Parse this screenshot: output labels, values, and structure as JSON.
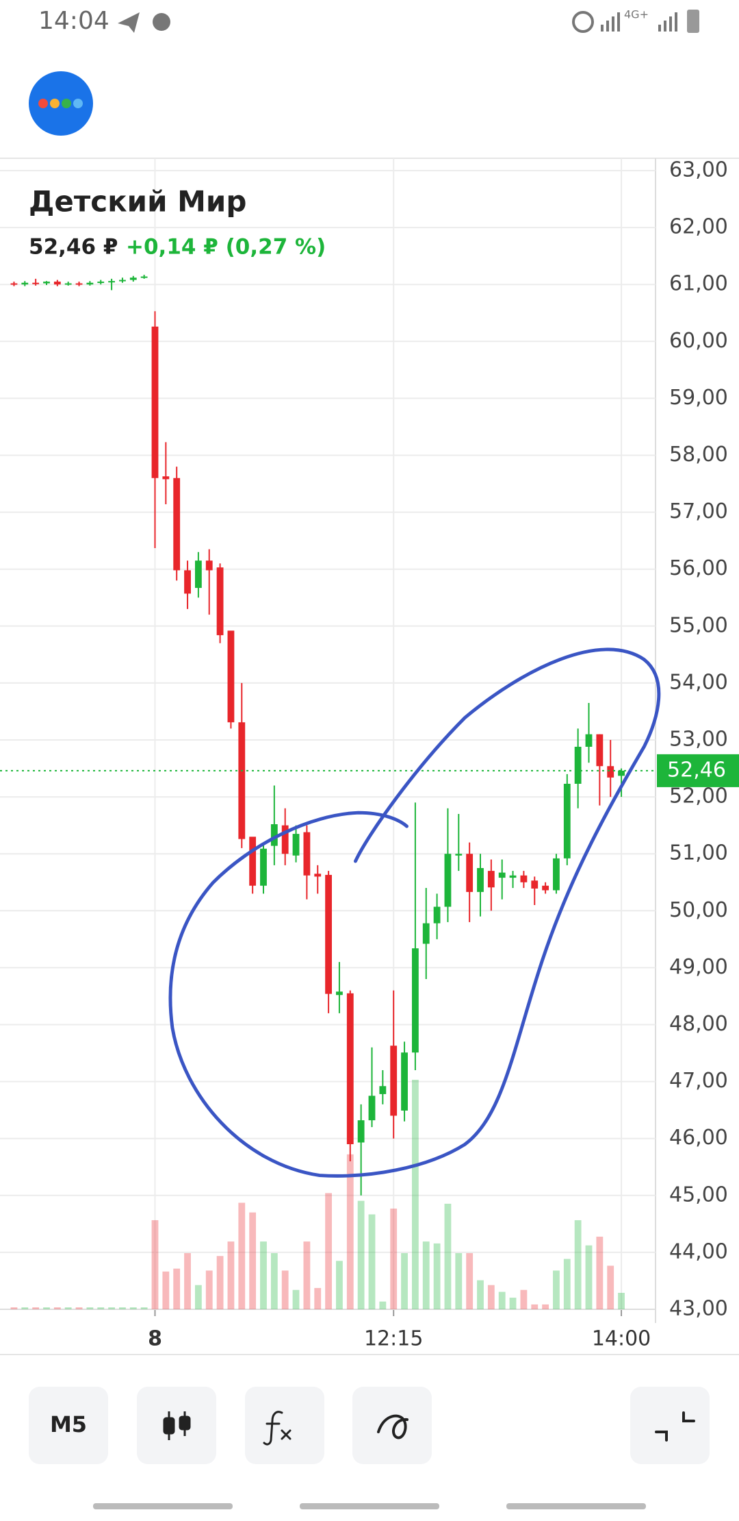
{
  "status_bar": {
    "time": "14:04",
    "network": "4G+"
  },
  "instrument": {
    "name": "Детский Мир",
    "price": "52,46 ₽",
    "change": "+0,14 ₽ (0,27 %)"
  },
  "chart_data": {
    "type": "candlestick",
    "categories": [
      null,
      null,
      null,
      null,
      null,
      null,
      null,
      null,
      null,
      null,
      null,
      null,
      null,
      "8",
      null,
      null,
      null,
      null,
      null,
      null,
      null,
      null,
      null,
      null,
      null,
      null,
      null,
      null,
      null,
      null,
      null,
      null,
      null,
      null,
      null,
      "12:15",
      null,
      null,
      null,
      null,
      null,
      null,
      null,
      null,
      null,
      null,
      null,
      null,
      null,
      null,
      null,
      null,
      null,
      null,
      null,
      null,
      "14:00"
    ],
    "open": [
      61.02,
      61.0,
      61.03,
      61.02,
      61.05,
      61.0,
      61.02,
      61.0,
      61.03,
      61.05,
      61.06,
      61.08,
      61.12,
      60.26,
      57.63,
      57.6,
      55.98,
      55.67,
      56.15,
      56.03,
      54.92,
      53.31,
      51.3,
      50.44,
      51.14,
      51.5,
      50.97,
      51.38,
      50.65,
      50.63,
      48.52,
      48.55,
      45.93,
      46.32,
      46.78,
      47.63,
      46.49,
      47.51,
      49.42,
      49.78,
      50.07,
      50.97,
      51.0,
      50.33,
      50.7,
      50.58,
      50.58,
      50.62,
      50.53,
      50.44,
      50.36,
      50.92,
      52.23,
      52.88,
      53.1,
      52.54,
      52.37
    ],
    "high": [
      61.05,
      61.06,
      61.1,
      61.06,
      61.08,
      61.05,
      61.05,
      61.06,
      61.08,
      61.1,
      61.12,
      61.15,
      61.17,
      60.53,
      58.23,
      57.8,
      56.15,
      56.3,
      56.35,
      56.1,
      54.9,
      54.0,
      51.2,
      51.2,
      52.2,
      51.8,
      51.5,
      51.5,
      50.8,
      50.7,
      49.1,
      48.6,
      46.6,
      47.6,
      47.2,
      48.6,
      47.7,
      51.9,
      50.4,
      50.3,
      51.8,
      51.7,
      51.2,
      51.0,
      50.9,
      50.9,
      50.7,
      50.7,
      50.6,
      50.5,
      51.0,
      52.4,
      53.2,
      53.65,
      53.1,
      53.0,
      52.5
    ],
    "low": [
      60.97,
      60.97,
      60.98,
      60.99,
      60.97,
      60.98,
      60.97,
      60.98,
      61.0,
      60.9,
      61.03,
      61.05,
      61.1,
      56.37,
      57.14,
      55.8,
      55.3,
      55.5,
      55.2,
      54.7,
      53.2,
      51.1,
      50.3,
      50.3,
      50.8,
      50.8,
      50.85,
      50.2,
      50.3,
      48.2,
      48.2,
      45.6,
      45.0,
      46.2,
      46.6,
      46.0,
      46.3,
      47.2,
      48.8,
      49.5,
      49.8,
      50.7,
      49.8,
      49.9,
      50.0,
      50.2,
      50.4,
      50.4,
      50.1,
      50.3,
      50.3,
      50.8,
      51.8,
      52.6,
      51.85,
      52.0,
      52.0
    ],
    "close": [
      61.0,
      61.03,
      61.02,
      61.05,
      61.0,
      61.02,
      61.0,
      61.03,
      61.05,
      61.06,
      61.08,
      61.12,
      61.14,
      57.6,
      57.58,
      55.98,
      55.57,
      56.15,
      55.98,
      54.84,
      53.31,
      51.26,
      50.44,
      51.09,
      51.52,
      51.0,
      51.35,
      50.62,
      50.6,
      48.54,
      48.58,
      45.9,
      46.32,
      46.75,
      46.92,
      46.4,
      47.51,
      49.34,
      49.78,
      50.07,
      51.0,
      51.0,
      50.33,
      50.75,
      50.41,
      50.67,
      50.62,
      50.5,
      50.39,
      50.36,
      50.92,
      52.23,
      52.88,
      53.1,
      52.54,
      52.34,
      52.46
    ],
    "volume": [
      2,
      2,
      2,
      2,
      2,
      2,
      2,
      2,
      2,
      2,
      2,
      2,
      2,
      92,
      39,
      42,
      58,
      25,
      40,
      55,
      70,
      110,
      100,
      70,
      58,
      40,
      20,
      70,
      22,
      120,
      50,
      160,
      112,
      98,
      8,
      104,
      58,
      237,
      70,
      68,
      109,
      58,
      58,
      30,
      25,
      18,
      12,
      20,
      5,
      5,
      40,
      52,
      92,
      66,
      75,
      45,
      17
    ],
    "up_color": "#1db53a",
    "down_color": "#e8262b",
    "ylim": [
      43,
      63
    ],
    "yticks": [
      {
        "value": 43,
        "label": "43,00"
      },
      {
        "value": 44,
        "label": "44,00"
      },
      {
        "value": 45,
        "label": "45,00"
      },
      {
        "value": 46,
        "label": "46,00"
      },
      {
        "value": 47,
        "label": "47,00"
      },
      {
        "value": 48,
        "label": "48,00"
      },
      {
        "value": 49,
        "label": "49,00"
      },
      {
        "value": 50,
        "label": "50,00"
      },
      {
        "value": 51,
        "label": "51,00"
      },
      {
        "value": 52,
        "label": "52,00"
      },
      {
        "value": 53,
        "label": "53,00"
      },
      {
        "value": 54,
        "label": "54,00"
      },
      {
        "value": 55,
        "label": "55,00"
      },
      {
        "value": 56,
        "label": "56,00"
      },
      {
        "value": 57,
        "label": "57,00"
      },
      {
        "value": 58,
        "label": "58,00"
      },
      {
        "value": 59,
        "label": "59,00"
      },
      {
        "value": 60,
        "label": "60,00"
      },
      {
        "value": 61,
        "label": "61,00"
      },
      {
        "value": 62,
        "label": "62,00"
      },
      {
        "value": 63,
        "label": "63,00"
      }
    ],
    "last_price": {
      "value": 52.46,
      "label": "52,46"
    },
    "grid": true
  },
  "toolbar": {
    "interval": "M5"
  }
}
